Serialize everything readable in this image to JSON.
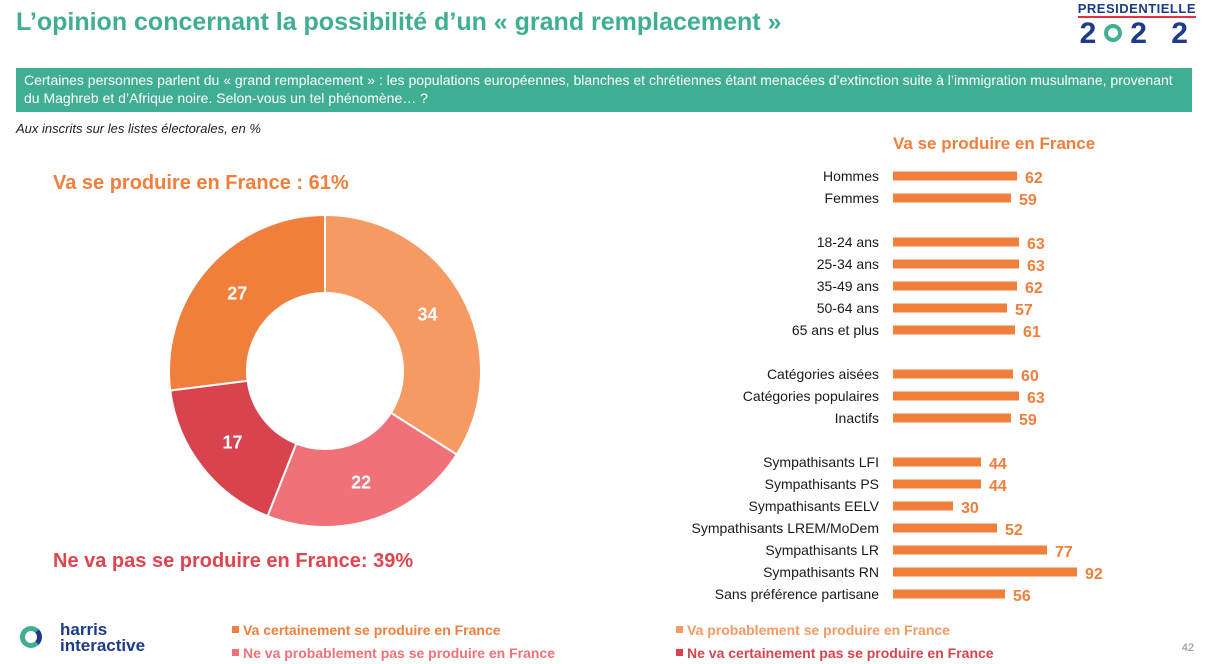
{
  "title": "L’opinion concernant la possibilité d’un « grand remplacement »",
  "brand": {
    "top": "PRESIDENTIELLE",
    "year_left": "2",
    "year_right": "2 2"
  },
  "question": "Certaines personnes parlent du « grand remplacement » : les populations européennes, blanches et chrétiennes étant menacées d’extinction suite à l’immigration musulmane, provenant du Maghreb et d’Afrique noire. Selon-vous un tel phénomène… ?",
  "subtitle": "Aux inscrits sur les listes électorales, en %",
  "yes_total": "Va se produire en France : 61%",
  "no_total": "Ne va pas se produire en France: 39%",
  "colors": {
    "teal": "#3fae93",
    "orange_dark": "#f07f3c",
    "orange_light": "#f59a63",
    "pink": "#f07178",
    "red": "#d9434e"
  },
  "legend": [
    {
      "label": "Va certainement se produire en France",
      "color": "#f07f3c"
    },
    {
      "label": "Va probablement se produire en France",
      "color": "#f59a63"
    },
    {
      "label": "Ne va probablement pas se produire en France",
      "color": "#f07178"
    },
    {
      "label": "Ne va certainement pas se produire en France",
      "color": "#d9434e"
    }
  ],
  "logo": {
    "line1": "harris",
    "line2": "interactive"
  },
  "page_number": "42",
  "chart_data": [
    {
      "type": "pie",
      "labels": [
        "Va probablement se produire en France",
        "Ne va probablement pas se produire en France",
        "Ne va certainement pas se produire en France",
        "Va certainement se produire en France"
      ],
      "values": [
        34,
        22,
        17,
        27
      ],
      "colors": [
        "#f59a63",
        "#f07178",
        "#d9434e",
        "#f07f3c"
      ],
      "donut": true
    },
    {
      "type": "bar",
      "orientation": "horizontal",
      "title": "Va se produire en France",
      "categories": [
        "Hommes",
        "Femmes",
        "18-24 ans",
        "25-34 ans",
        "35-49 ans",
        "50-64 ans",
        "65 ans et plus",
        "Catégories aisées",
        "Catégories populaires",
        "Inactifs",
        "Sympathisants LFI",
        "Sympathisants PS",
        "Sympathisants EELV",
        "Sympathisants LREM/MoDem",
        "Sympathisants LR",
        "Sympathisants RN",
        "Sans préférence partisane"
      ],
      "values": [
        62,
        59,
        63,
        63,
        62,
        57,
        61,
        60,
        63,
        59,
        44,
        44,
        30,
        52,
        77,
        92,
        56
      ],
      "groups": [
        [
          0,
          1
        ],
        [
          2,
          3,
          4,
          5,
          6
        ],
        [
          7,
          8,
          9
        ],
        [
          10,
          11,
          12,
          13,
          14,
          15,
          16
        ]
      ],
      "color": "#f07f3c"
    }
  ]
}
